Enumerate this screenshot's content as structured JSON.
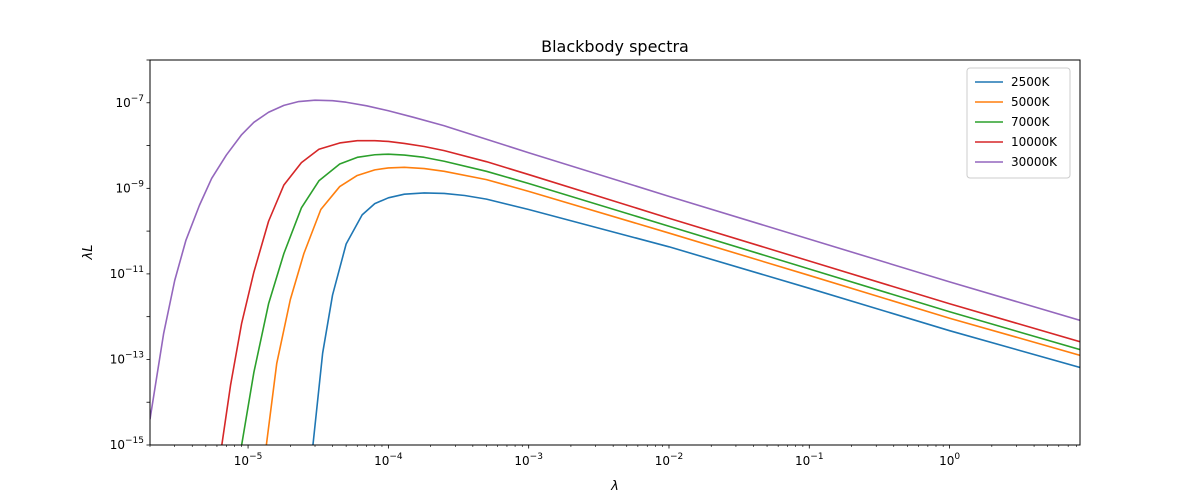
{
  "chart_data": {
    "type": "line",
    "title": "Blackbody spectra",
    "xlabel": "λ",
    "ylabel": "λL",
    "x_scale": "log",
    "y_scale": "log",
    "xlim": [
      2e-06,
      8.5
    ],
    "ylim": [
      1e-15,
      1e-06
    ],
    "x_ticks": [
      {
        "value": 1e-05,
        "base": "10",
        "exp": "−5"
      },
      {
        "value": 0.0001,
        "base": "10",
        "exp": "−4"
      },
      {
        "value": 0.001,
        "base": "10",
        "exp": "−3"
      },
      {
        "value": 0.01,
        "base": "10",
        "exp": "−2"
      },
      {
        "value": 0.1,
        "base": "10",
        "exp": "−1"
      },
      {
        "value": 1,
        "base": "10",
        "exp": "0"
      }
    ],
    "y_ticks": [
      {
        "value": 1e-15,
        "base": "10",
        "exp": "−15"
      },
      {
        "value": 1e-13,
        "base": "10",
        "exp": "−13"
      },
      {
        "value": 1e-11,
        "base": "10",
        "exp": "−11"
      },
      {
        "value": 1e-09,
        "base": "10",
        "exp": "−9"
      },
      {
        "value": 1e-07,
        "base": "10",
        "exp": "−7"
      }
    ],
    "grid": false,
    "legend_position": "top-right",
    "series": [
      {
        "name": "2500K",
        "color": "#1f77b4",
        "points": [
          [
            2.9e-05,
            1e-15
          ],
          [
            3.4e-05,
            1.4e-13
          ],
          [
            4e-05,
            3.2e-12
          ],
          [
            5e-05,
            5e-11
          ],
          [
            6.5e-05,
            2.4e-10
          ],
          [
            8e-05,
            4.4e-10
          ],
          [
            0.0001,
            6e-10
          ],
          [
            0.00013,
            7.3e-10
          ],
          [
            0.00018,
            7.8e-10
          ],
          [
            0.00025,
            7.6e-10
          ],
          [
            0.00035,
            6.8e-10
          ],
          [
            0.0005,
            5.6e-10
          ],
          [
            0.001,
            3.2e-10
          ],
          [
            0.01,
            4.3e-11
          ],
          [
            0.1,
            4.6e-12
          ],
          [
            1,
            4.7e-13
          ],
          [
            8.5,
            6.5e-14
          ]
        ]
      },
      {
        "name": "5000K",
        "color": "#ff7f0e",
        "points": [
          [
            1.35e-05,
            1e-15
          ],
          [
            1.6e-05,
            8e-14
          ],
          [
            2e-05,
            2.5e-12
          ],
          [
            2.5e-05,
            3e-11
          ],
          [
            3.3e-05,
            3.2e-10
          ],
          [
            4.5e-05,
            1.1e-09
          ],
          [
            6e-05,
            2e-09
          ],
          [
            8e-05,
            2.7e-09
          ],
          [
            0.0001,
            3e-09
          ],
          [
            0.00013,
            3.1e-09
          ],
          [
            0.00018,
            2.9e-09
          ],
          [
            0.00025,
            2.5e-09
          ],
          [
            0.0005,
            1.6e-09
          ],
          [
            0.001,
            8.5e-10
          ],
          [
            0.01,
            9e-11
          ],
          [
            0.1,
            9.2e-12
          ],
          [
            1,
            9.2e-13
          ],
          [
            8.5,
            1.25e-13
          ]
        ]
      },
      {
        "name": "7000K",
        "color": "#2ca02c",
        "points": [
          [
            9e-06,
            1e-15
          ],
          [
            1.1e-05,
            5e-14
          ],
          [
            1.4e-05,
            2e-12
          ],
          [
            1.8e-05,
            3e-11
          ],
          [
            2.4e-05,
            3.5e-10
          ],
          [
            3.2e-05,
            1.5e-09
          ],
          [
            4.5e-05,
            3.7e-09
          ],
          [
            6e-05,
            5.3e-09
          ],
          [
            8e-05,
            6.1e-09
          ],
          [
            0.0001,
            6.3e-09
          ],
          [
            0.00013,
            6e-09
          ],
          [
            0.00018,
            5.3e-09
          ],
          [
            0.00025,
            4.3e-09
          ],
          [
            0.0005,
            2.5e-09
          ],
          [
            0.001,
            1.3e-09
          ],
          [
            0.01,
            1.3e-10
          ],
          [
            0.1,
            1.3e-11
          ],
          [
            1,
            1.3e-12
          ],
          [
            8.5,
            1.7e-13
          ]
        ]
      },
      {
        "name": "10000K",
        "color": "#d62728",
        "points": [
          [
            6.5e-06,
            1e-15
          ],
          [
            7.5e-06,
            2.5e-14
          ],
          [
            9e-06,
            7e-13
          ],
          [
            1.1e-05,
            1.1e-11
          ],
          [
            1.4e-05,
            1.7e-10
          ],
          [
            1.8e-05,
            1.2e-09
          ],
          [
            2.4e-05,
            4e-09
          ],
          [
            3.2e-05,
            8.2e-09
          ],
          [
            4.5e-05,
            1.15e-08
          ],
          [
            6e-05,
            1.3e-08
          ],
          [
            8e-05,
            1.3e-08
          ],
          [
            0.0001,
            1.25e-08
          ],
          [
            0.00013,
            1.12e-08
          ],
          [
            0.00018,
            9.5e-09
          ],
          [
            0.00025,
            7.6e-09
          ],
          [
            0.0005,
            4.2e-09
          ],
          [
            0.001,
            2.1e-09
          ],
          [
            0.01,
            2e-10
          ],
          [
            0.1,
            2e-11
          ],
          [
            1,
            2e-12
          ],
          [
            8.5,
            2.6e-13
          ]
        ]
      },
      {
        "name": "30000K",
        "color": "#9467bd",
        "points": [
          [
            2e-06,
            4e-15
          ],
          [
            2.5e-06,
            4e-13
          ],
          [
            3e-06,
            7e-12
          ],
          [
            3.6e-06,
            6e-11
          ],
          [
            4.5e-06,
            4e-10
          ],
          [
            5.5e-06,
            1.7e-09
          ],
          [
            7e-06,
            6e-09
          ],
          [
            9e-06,
            1.8e-08
          ],
          [
            1.1e-05,
            3.5e-08
          ],
          [
            1.4e-05,
            6e-08
          ],
          [
            1.8e-05,
            8.7e-08
          ],
          [
            2.3e-05,
            1.07e-07
          ],
          [
            3e-05,
            1.15e-07
          ],
          [
            4e-05,
            1.12e-07
          ],
          [
            5e-05,
            1.03e-07
          ],
          [
            7e-05,
            8.5e-08
          ],
          [
            0.0001,
            6.5e-08
          ],
          [
            0.00015,
            4.6e-08
          ],
          [
            0.00025,
            2.9e-08
          ],
          [
            0.0005,
            1.4e-08
          ],
          [
            0.001,
            6.8e-09
          ],
          [
            0.01,
            6.5e-10
          ],
          [
            0.1,
            6.5e-11
          ],
          [
            1,
            6.5e-12
          ],
          [
            8.5,
            8.2e-13
          ]
        ]
      }
    ]
  }
}
